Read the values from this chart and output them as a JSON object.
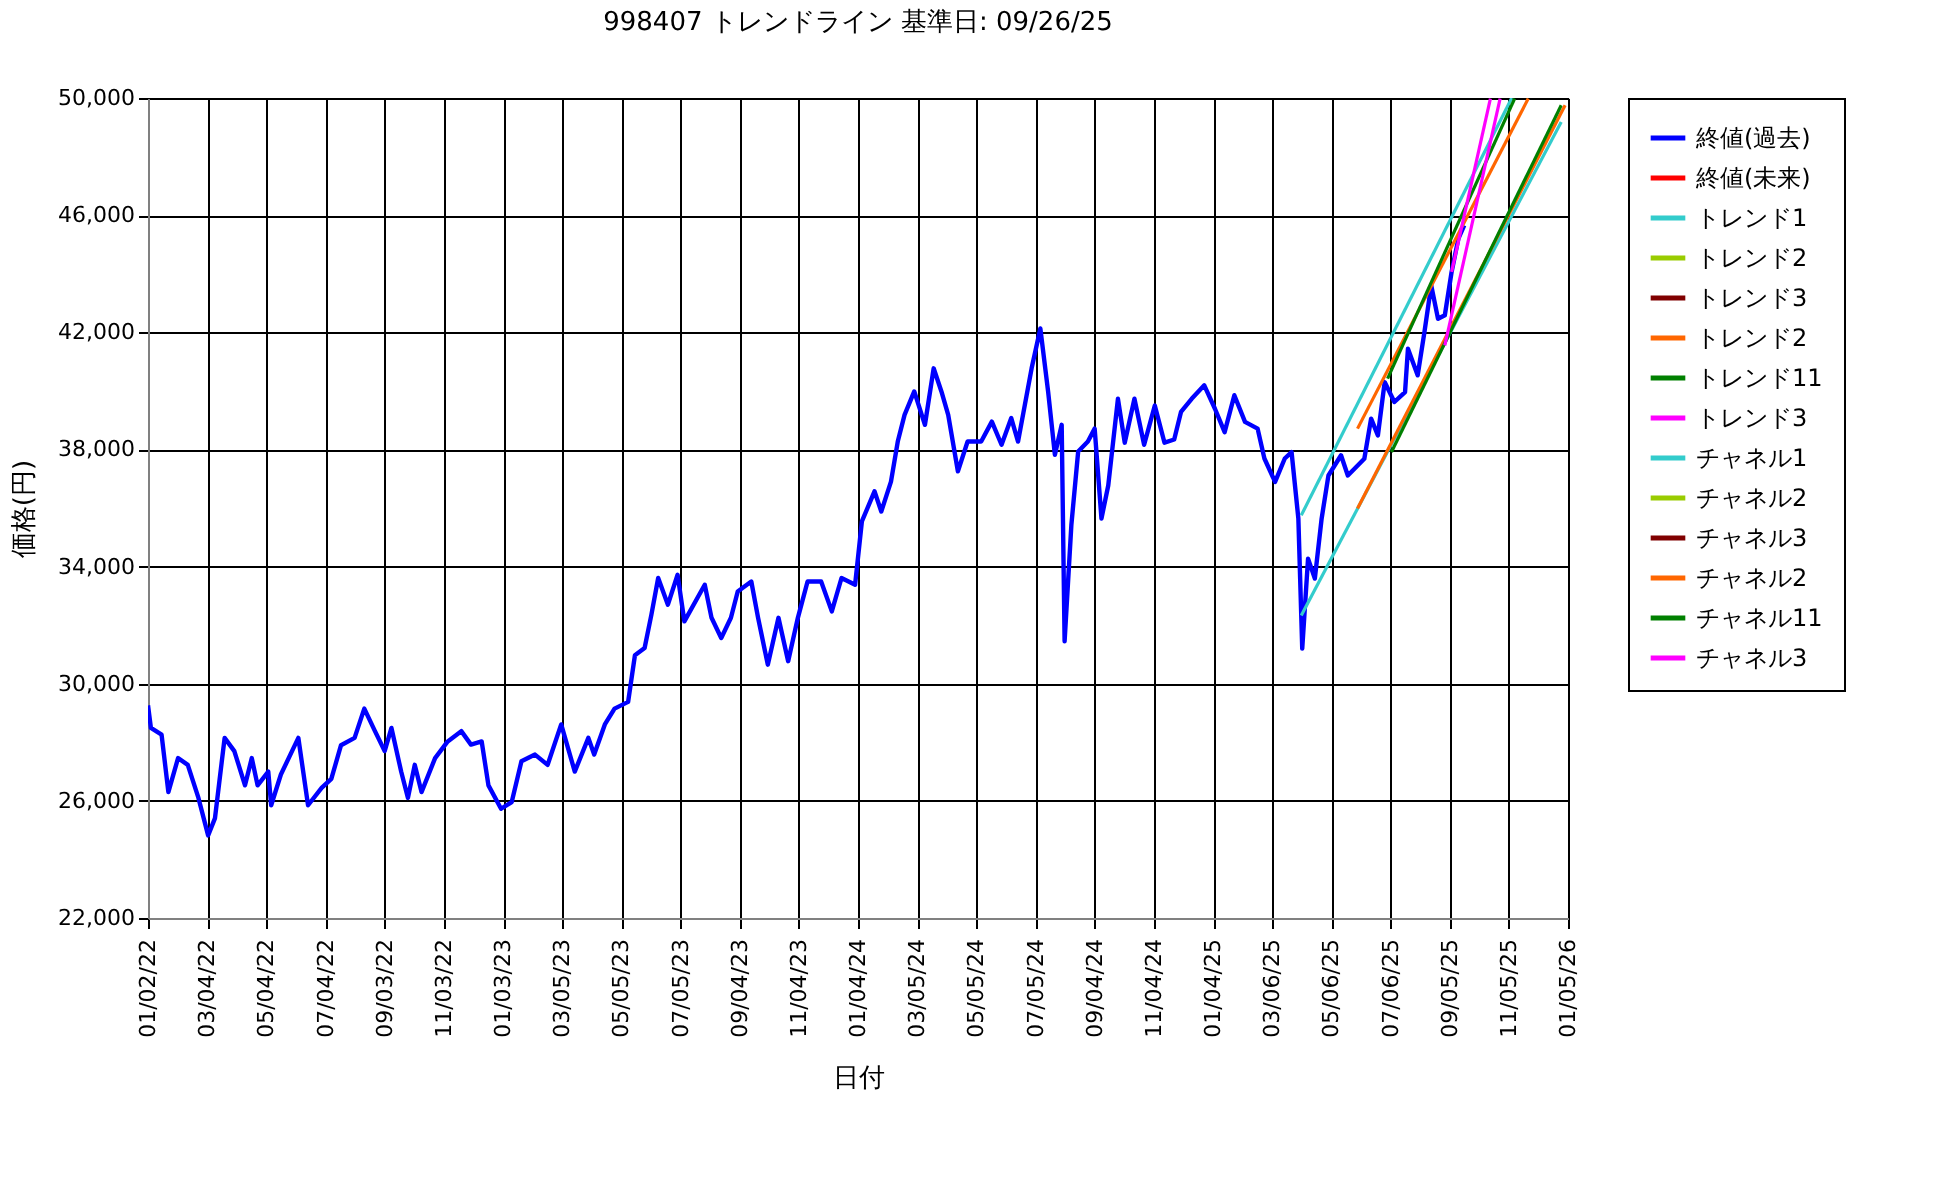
{
  "chart_data": {
    "type": "line",
    "title": "998407 トレンドライン 基準日: 09/26/25",
    "xlabel": "日付",
    "ylabel": "価格(円)",
    "xlim": [
      "2022-01-02",
      "2026-01-05"
    ],
    "ylim": [
      22000,
      50000
    ],
    "xticks": [
      {
        "value": "2022-01-02",
        "label": "01/02/22"
      },
      {
        "value": "2022-03-04",
        "label": "03/04/22"
      },
      {
        "value": "2022-05-04",
        "label": "05/04/22"
      },
      {
        "value": "2022-07-04",
        "label": "07/04/22"
      },
      {
        "value": "2022-09-03",
        "label": "09/03/22"
      },
      {
        "value": "2022-11-03",
        "label": "11/03/22"
      },
      {
        "value": "2023-01-03",
        "label": "01/03/23"
      },
      {
        "value": "2023-03-05",
        "label": "03/05/23"
      },
      {
        "value": "2023-05-05",
        "label": "05/05/23"
      },
      {
        "value": "2023-07-05",
        "label": "07/05/23"
      },
      {
        "value": "2023-09-04",
        "label": "09/04/23"
      },
      {
        "value": "2023-11-04",
        "label": "11/04/23"
      },
      {
        "value": "2024-01-04",
        "label": "01/04/24"
      },
      {
        "value": "2024-03-05",
        "label": "03/05/24"
      },
      {
        "value": "2024-05-05",
        "label": "05/05/24"
      },
      {
        "value": "2024-07-05",
        "label": "07/05/24"
      },
      {
        "value": "2024-09-04",
        "label": "09/04/24"
      },
      {
        "value": "2024-11-04",
        "label": "11/04/24"
      },
      {
        "value": "2025-01-04",
        "label": "01/04/25"
      },
      {
        "value": "2025-03-06",
        "label": "03/06/25"
      },
      {
        "value": "2025-05-06",
        "label": "05/06/25"
      },
      {
        "value": "2025-07-06",
        "label": "07/06/25"
      },
      {
        "value": "2025-09-05",
        "label": "09/05/25"
      },
      {
        "value": "2025-11-05",
        "label": "11/05/25"
      },
      {
        "value": "2026-01-05",
        "label": "01/05/26"
      }
    ],
    "yticks": [
      {
        "value": 22000,
        "label": "22,000"
      },
      {
        "value": 26000,
        "label": "26,000"
      },
      {
        "value": 30000,
        "label": "30,000"
      },
      {
        "value": 34000,
        "label": "34,000"
      },
      {
        "value": 38000,
        "label": "38,000"
      },
      {
        "value": 42000,
        "label": "42,000"
      },
      {
        "value": 46000,
        "label": "46,000"
      },
      {
        "value": 50000,
        "label": "50,000"
      }
    ],
    "grid": true,
    "legend": "right",
    "series": [
      {
        "name": "終値(過去)",
        "color": "#0000ff",
        "x": [
          "2022-01-02",
          "2022-01-05",
          "2022-01-16",
          "2022-01-23",
          "2022-02-02",
          "2022-02-12",
          "2022-02-23",
          "2022-03-05",
          "2022-03-12",
          "2022-03-22",
          "2022-04-01",
          "2022-04-12",
          "2022-04-19",
          "2022-04-25",
          "2022-05-06",
          "2022-05-09",
          "2022-05-19",
          "2022-06-06",
          "2022-06-16",
          "2022-06-30",
          "2022-07-10",
          "2022-07-20",
          "2022-08-03",
          "2022-08-13",
          "2022-08-24",
          "2022-09-03",
          "2022-09-10",
          "2022-09-20",
          "2022-09-27",
          "2022-10-04",
          "2022-10-11",
          "2022-10-25",
          "2022-11-07",
          "2022-11-21",
          "2022-12-01",
          "2022-12-12",
          "2022-12-19",
          "2023-01-01",
          "2023-01-12",
          "2023-01-22",
          "2023-02-05",
          "2023-02-18",
          "2023-03-04",
          "2023-03-18",
          "2023-04-01",
          "2023-04-07",
          "2023-04-18",
          "2023-04-28",
          "2023-05-12",
          "2023-05-19",
          "2023-05-29",
          "2023-06-05",
          "2023-06-12",
          "2023-06-22",
          "2023-07-02",
          "2023-07-09",
          "2023-07-30",
          "2023-08-06",
          "2023-08-16",
          "2023-08-26",
          "2023-09-02",
          "2023-09-16",
          "2023-09-23",
          "2023-10-03",
          "2023-10-14",
          "2023-10-24",
          "2023-11-03",
          "2023-11-13",
          "2023-11-27",
          "2023-12-08",
          "2023-12-18",
          "2024-01-01",
          "2024-01-08",
          "2024-01-21",
          "2024-01-28",
          "2024-02-07",
          "2024-02-14",
          "2024-02-21",
          "2024-03-02",
          "2024-03-13",
          "2024-03-22",
          "2024-03-30",
          "2024-04-06",
          "2024-04-16",
          "2024-04-26",
          "2024-05-10",
          "2024-05-21",
          "2024-05-31",
          "2024-06-10",
          "2024-06-17",
          "2024-07-01",
          "2024-07-10",
          "2024-07-18",
          "2024-07-25",
          "2024-08-01",
          "2024-08-04",
          "2024-08-11",
          "2024-08-18",
          "2024-08-28",
          "2024-09-04",
          "2024-09-11",
          "2024-09-18",
          "2024-09-28",
          "2024-10-05",
          "2024-10-15",
          "2024-10-25",
          "2024-11-05",
          "2024-11-15",
          "2024-11-25",
          "2024-12-02",
          "2024-12-13",
          "2024-12-26",
          "2025-01-06",
          "2025-01-16",
          "2025-01-26",
          "2025-02-06",
          "2025-02-19",
          "2025-02-26",
          "2025-03-09",
          "2025-03-19",
          "2025-03-26",
          "2025-04-02",
          "2025-04-06",
          "2025-04-12",
          "2025-04-19",
          "2025-04-26",
          "2025-05-03",
          "2025-05-16",
          "2025-05-23",
          "2025-06-09",
          "2025-06-16",
          "2025-06-23",
          "2025-06-30",
          "2025-07-10",
          "2025-07-21",
          "2025-07-24",
          "2025-08-03",
          "2025-08-10",
          "2025-08-17",
          "2025-08-24",
          "2025-08-31",
          "2025-09-07",
          "2025-09-14",
          "2025-09-20"
        ],
        "values": [
          29260,
          28490,
          28260,
          26300,
          27460,
          27230,
          26100,
          24820,
          25400,
          28150,
          27700,
          26530,
          27460,
          26530,
          27000,
          25850,
          26900,
          28150,
          25850,
          26440,
          26750,
          27900,
          28150,
          29150,
          28380,
          27700,
          28490,
          27000,
          26100,
          27230,
          26300,
          27460,
          28030,
          28380,
          27920,
          28030,
          26530,
          25730,
          25960,
          27350,
          27580,
          27230,
          28610,
          27000,
          28150,
          27580,
          28610,
          29150,
          29380,
          30970,
          31220,
          32360,
          33610,
          32700,
          33720,
          32130,
          33380,
          32250,
          31560,
          32250,
          33150,
          33490,
          32250,
          30650,
          32250,
          30770,
          32250,
          33490,
          33490,
          32470,
          33610,
          33380,
          35540,
          36570,
          35880,
          36900,
          38270,
          39180,
          39980,
          38840,
          40770,
          39980,
          39180,
          37250,
          38270,
          38270,
          38950,
          38160,
          39070,
          38270,
          40770,
          42130,
          39980,
          37820,
          38840,
          31450,
          35430,
          37930,
          38270,
          38710,
          35640,
          36770,
          39730,
          38230,
          39730,
          38160,
          39500,
          38230,
          38340,
          39280,
          39730,
          40190,
          39390,
          38590,
          39850,
          38940,
          38710,
          37690,
          36890,
          37690,
          37910,
          35640,
          31200,
          34270,
          33590,
          35640,
          37110,
          37800,
          37110,
          37680,
          39050,
          38480,
          40300,
          39620,
          39960,
          41440,
          40530,
          42010,
          43600,
          42460,
          42580,
          44060,
          45200,
          45650
        ]
      },
      {
        "name": "終値(未来)",
        "color": "#ff0000"
      },
      {
        "name": "トレンド1",
        "color": "#33cccc",
        "x": [
          "2025-04-05",
          "2025-11-08"
        ],
        "values": [
          35750,
          50000
        ]
      },
      {
        "name": "トレンド2",
        "color": "#99cc00"
      },
      {
        "name": "トレンド3",
        "color": "#800000"
      },
      {
        "name": "トレンド2",
        "color": "#ff6600",
        "x": [
          "2025-06-02",
          "2025-11-25"
        ],
        "values": [
          38710,
          49980
        ]
      },
      {
        "name": "トレンド11",
        "color": "#008000",
        "x": [
          "2025-07-03",
          "2025-11-11"
        ],
        "values": [
          40420,
          49980
        ]
      },
      {
        "name": "トレンド3",
        "color": "#ff00ff",
        "x": [
          "2025-09-07",
          "2025-10-17"
        ],
        "values": [
          44060,
          49980
        ]
      },
      {
        "name": "チャネル1",
        "color": "#33cccc",
        "x": [
          "2025-04-05",
          "2025-12-29"
        ],
        "values": [
          32330,
          49180
        ]
      },
      {
        "name": "チャネル2",
        "color": "#99cc00"
      },
      {
        "name": "チャネル3",
        "color": "#800000"
      },
      {
        "name": "チャネル2",
        "color": "#ff6600",
        "x": [
          "2025-06-02",
          "2026-01-02"
        ],
        "values": [
          35980,
          49750
        ]
      },
      {
        "name": "チャネル11",
        "color": "#008000",
        "x": [
          "2025-07-07",
          "2025-12-29"
        ],
        "values": [
          37910,
          49750
        ]
      },
      {
        "name": "チャネル3",
        "color": "#ff00ff",
        "x": [
          "2025-08-31",
          "2025-10-27"
        ],
        "values": [
          41550,
          49980
        ]
      }
    ]
  }
}
